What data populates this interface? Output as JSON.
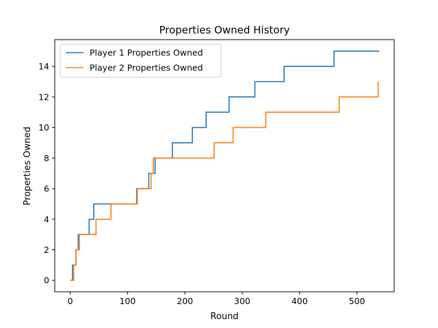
{
  "chart_data": {
    "type": "line",
    "title": "Properties Owned History",
    "xlabel": "Round",
    "ylabel": "Properties Owned",
    "xlim": [
      -27,
      565
    ],
    "ylim": [
      -0.75,
      15.75
    ],
    "xticks": [
      0,
      100,
      200,
      300,
      400,
      500
    ],
    "yticks": [
      0,
      2,
      4,
      6,
      8,
      10,
      12,
      14
    ],
    "grid": false,
    "legend_position": "upper-left",
    "series": [
      {
        "name": "Player 1 Properties Owned",
        "color": "#1f77b4",
        "points": [
          [
            0,
            0
          ],
          [
            4,
            0
          ],
          [
            4,
            1
          ],
          [
            10,
            1
          ],
          [
            10,
            2
          ],
          [
            14,
            2
          ],
          [
            14,
            3
          ],
          [
            33,
            3
          ],
          [
            33,
            4
          ],
          [
            41,
            4
          ],
          [
            41,
            5
          ],
          [
            116,
            5
          ],
          [
            116,
            6
          ],
          [
            137,
            6
          ],
          [
            137,
            7
          ],
          [
            148,
            7
          ],
          [
            148,
            8
          ],
          [
            178,
            8
          ],
          [
            178,
            9
          ],
          [
            213,
            9
          ],
          [
            213,
            10
          ],
          [
            237,
            10
          ],
          [
            237,
            11
          ],
          [
            277,
            11
          ],
          [
            277,
            12
          ],
          [
            322,
            12
          ],
          [
            322,
            13
          ],
          [
            373,
            13
          ],
          [
            373,
            14
          ],
          [
            460,
            14
          ],
          [
            460,
            15
          ],
          [
            539,
            15
          ]
        ]
      },
      {
        "name": "Player 2 Properties Owned",
        "color": "#ff7f0e",
        "points": [
          [
            0,
            0
          ],
          [
            6,
            0
          ],
          [
            6,
            1
          ],
          [
            10,
            1
          ],
          [
            10,
            2
          ],
          [
            16,
            2
          ],
          [
            16,
            3
          ],
          [
            45,
            3
          ],
          [
            45,
            4
          ],
          [
            71,
            4
          ],
          [
            71,
            5
          ],
          [
            117,
            5
          ],
          [
            117,
            6
          ],
          [
            141,
            6
          ],
          [
            141,
            7
          ],
          [
            145,
            7
          ],
          [
            145,
            8
          ],
          [
            251,
            8
          ],
          [
            251,
            9
          ],
          [
            284,
            9
          ],
          [
            284,
            10
          ],
          [
            341,
            10
          ],
          [
            341,
            11
          ],
          [
            469,
            11
          ],
          [
            469,
            12
          ],
          [
            537,
            12
          ],
          [
            537,
            13
          ]
        ]
      }
    ]
  }
}
